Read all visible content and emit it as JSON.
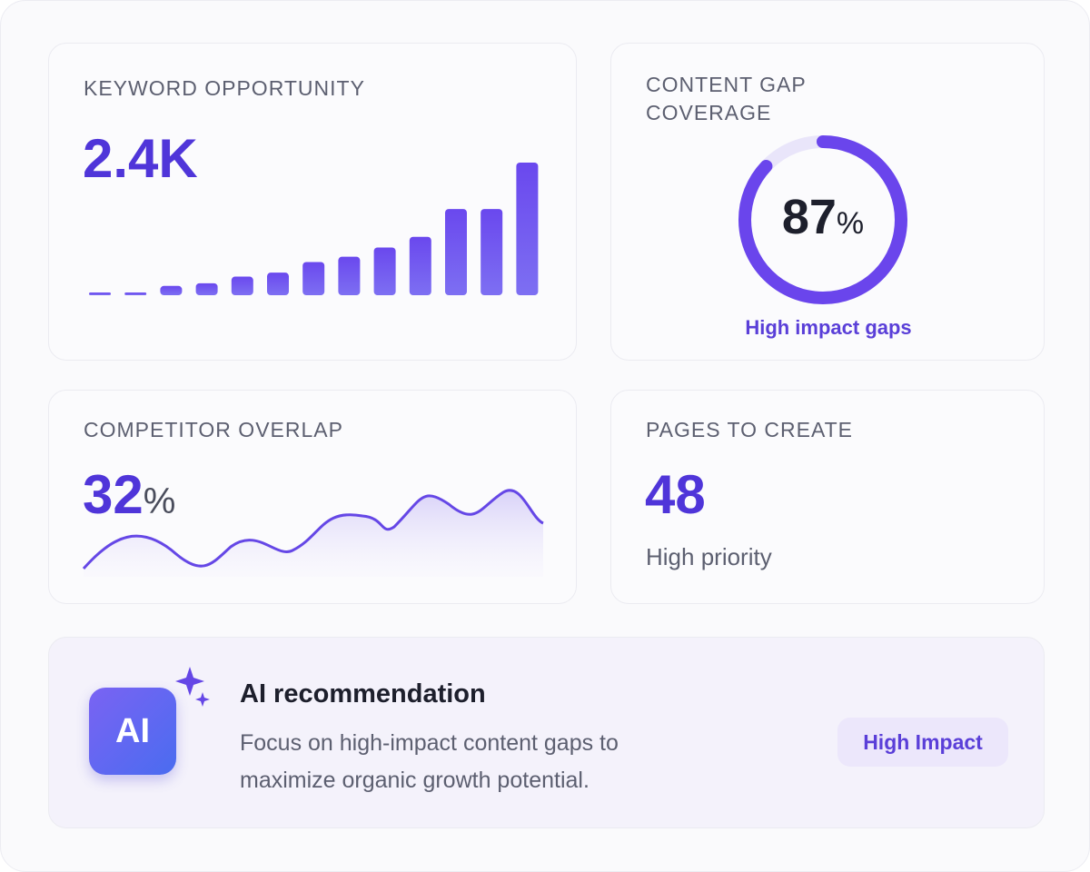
{
  "keyword_opportunity": {
    "label": "KEYWORD OPPORTUNITY",
    "value": "2.4K",
    "bars": [
      2,
      2,
      7,
      9,
      14,
      17,
      25,
      29,
      36,
      44,
      65,
      65,
      100
    ]
  },
  "content_gap": {
    "label": "CONTENT GAP COVERAGE",
    "value": 87,
    "unit": "%",
    "caption": "High impact gaps"
  },
  "competitor_overlap": {
    "label": "COMPETITOR OVERLAP",
    "value": 32,
    "unit": "%"
  },
  "pages_to_create": {
    "label": "PAGES TO CREATE",
    "value": 48,
    "caption": "High priority"
  },
  "recommendation": {
    "icon": "AI",
    "title": "AI recommendation",
    "text": "Focus on high-impact content gaps to maximize organic growth potential.",
    "badge": "High Impact"
  }
}
